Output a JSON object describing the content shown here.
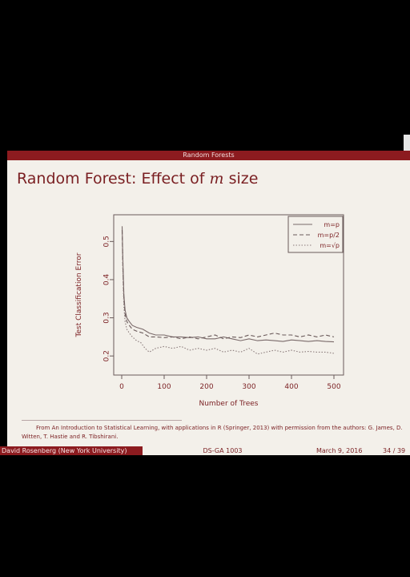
{
  "header": {
    "section": "Random Forests"
  },
  "slide": {
    "title_prefix": "Random Forest: Effect of ",
    "title_var": "m",
    "title_suffix": " size"
  },
  "chart_data": {
    "type": "line",
    "xlabel": "Number of Trees",
    "ylabel": "Test Classification Error",
    "xlim": [
      0,
      500
    ],
    "ylim": [
      0.15,
      0.57
    ],
    "xticks": [
      0,
      100,
      200,
      300,
      400,
      500
    ],
    "yticks": [
      0.2,
      0.3,
      0.4,
      0.5
    ],
    "legend_position": "top-right",
    "series": [
      {
        "name": "m=p",
        "style": "solid",
        "color": "#7a6a6a",
        "x": [
          1,
          3,
          5,
          8,
          12,
          18,
          25,
          35,
          50,
          65,
          80,
          100,
          120,
          140,
          160,
          180,
          200,
          220,
          240,
          260,
          280,
          300,
          320,
          340,
          360,
          380,
          400,
          420,
          440,
          460,
          480,
          500
        ],
        "y": [
          0.54,
          0.44,
          0.36,
          0.32,
          0.3,
          0.29,
          0.28,
          0.275,
          0.27,
          0.26,
          0.255,
          0.255,
          0.25,
          0.25,
          0.248,
          0.25,
          0.245,
          0.245,
          0.25,
          0.245,
          0.24,
          0.245,
          0.24,
          0.242,
          0.24,
          0.238,
          0.242,
          0.24,
          0.238,
          0.24,
          0.238,
          0.237
        ]
      },
      {
        "name": "m=p/2",
        "style": "dashed",
        "color": "#6a5a5a",
        "x": [
          1,
          3,
          5,
          8,
          12,
          18,
          25,
          35,
          50,
          65,
          80,
          100,
          120,
          140,
          160,
          180,
          200,
          220,
          240,
          260,
          280,
          300,
          320,
          340,
          360,
          380,
          400,
          420,
          440,
          460,
          480,
          500
        ],
        "y": [
          0.53,
          0.42,
          0.35,
          0.31,
          0.29,
          0.28,
          0.27,
          0.265,
          0.26,
          0.25,
          0.25,
          0.248,
          0.25,
          0.245,
          0.25,
          0.245,
          0.25,
          0.255,
          0.245,
          0.25,
          0.248,
          0.255,
          0.25,
          0.255,
          0.26,
          0.255,
          0.255,
          0.25,
          0.255,
          0.25,
          0.255,
          0.25
        ]
      },
      {
        "name": "m=√p",
        "style": "dotted",
        "color": "#8a7a7a",
        "x": [
          1,
          3,
          5,
          8,
          12,
          18,
          25,
          35,
          45,
          55,
          65,
          80,
          100,
          120,
          140,
          160,
          180,
          200,
          220,
          240,
          260,
          280,
          300,
          320,
          340,
          360,
          380,
          400,
          420,
          440,
          460,
          480,
          500
        ],
        "y": [
          0.52,
          0.4,
          0.33,
          0.29,
          0.27,
          0.26,
          0.25,
          0.24,
          0.235,
          0.22,
          0.21,
          0.22,
          0.225,
          0.22,
          0.225,
          0.215,
          0.22,
          0.215,
          0.22,
          0.21,
          0.215,
          0.21,
          0.22,
          0.205,
          0.21,
          0.215,
          0.21,
          0.215,
          0.21,
          0.212,
          0.21,
          0.21,
          0.207
        ]
      }
    ]
  },
  "source": {
    "text": "From An Introduction to Statistical Learning, with applications in R (Springer, 2013) with permission from the authors: G. James, D. Witten, T. Hastie and R. Tibshirani."
  },
  "footer": {
    "author": "David Rosenberg  (New York University)",
    "course": "DS-GA 1003",
    "date": "March 9, 2016",
    "page": "34 / 39"
  }
}
